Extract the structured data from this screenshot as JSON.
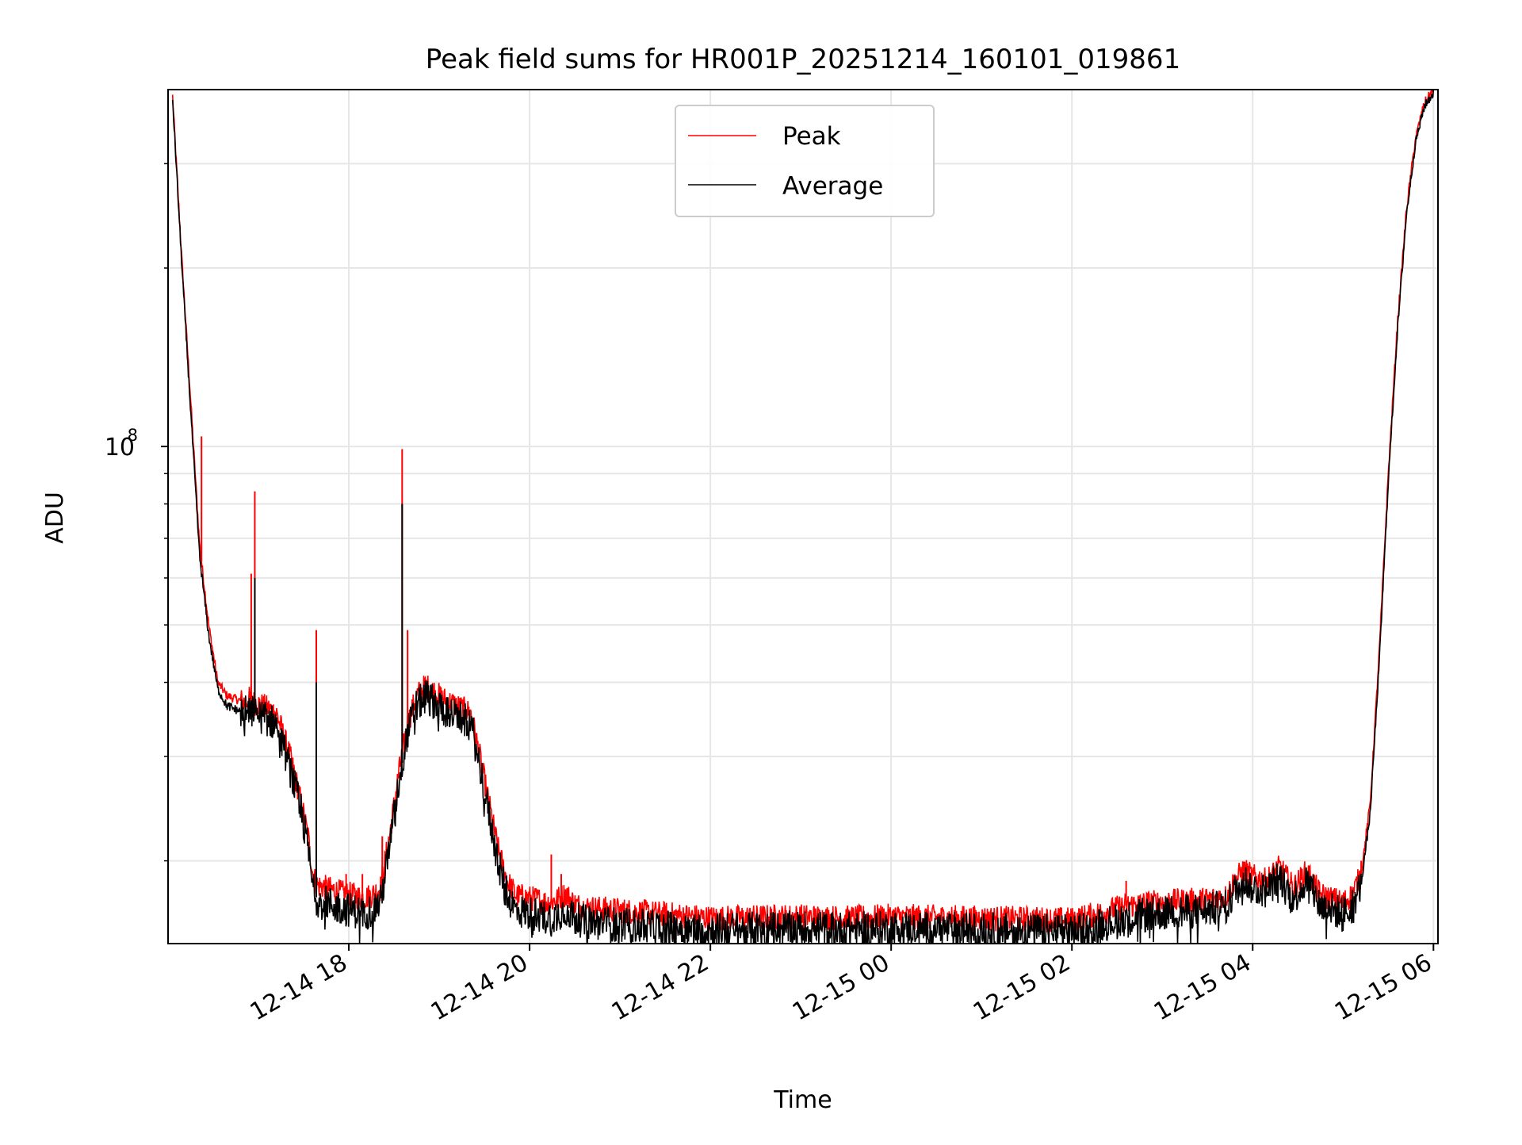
{
  "chart_data": {
    "type": "line",
    "title": "Peak field sums for HR001P_20251214_160101_019861",
    "xlabel": "Time",
    "ylabel": "ADU",
    "yscale": "log",
    "ylim": [
      14500000,
      400000000
    ],
    "xlim_hours": [
      16.0,
      30.05
    ],
    "grid": true,
    "legend_position": "top-center",
    "x_ticks": [
      {
        "hour": 18,
        "label": "12-14 18"
      },
      {
        "hour": 20,
        "label": "12-14 20"
      },
      {
        "hour": 22,
        "label": "12-14 22"
      },
      {
        "hour": 24,
        "label": "12-15 00"
      },
      {
        "hour": 26,
        "label": "12-15 02"
      },
      {
        "hour": 28,
        "label": "12-15 04"
      },
      {
        "hour": 30,
        "label": "12-15 06"
      }
    ],
    "y_major_ticks": [
      {
        "value": 100000000,
        "base": "10",
        "exp": "8"
      }
    ],
    "y_minor_ticks": [
      20000000,
      30000000,
      40000000,
      50000000,
      60000000,
      70000000,
      80000000,
      90000000,
      200000000,
      300000000
    ],
    "series": [
      {
        "name": "Peak",
        "color": "#ff0000",
        "x_hours": [
          16.05,
          16.15,
          16.25,
          16.35,
          16.45,
          16.55,
          16.65,
          16.75,
          16.85,
          16.9,
          16.95,
          17.05,
          17.2,
          17.35,
          17.45,
          17.55,
          17.6,
          17.65,
          17.75,
          17.85,
          17.95,
          18.05,
          18.15,
          18.25,
          18.35,
          18.45,
          18.55,
          18.65,
          18.75,
          18.85,
          18.95,
          19.05,
          19.2,
          19.35,
          19.45,
          19.55,
          19.65,
          19.75,
          19.85,
          20.0,
          20.1,
          20.2,
          20.3,
          20.4,
          20.5,
          20.6,
          20.8,
          21.0,
          21.2,
          21.4,
          21.6,
          21.8,
          22.0,
          22.5,
          23.0,
          23.5,
          24.0,
          24.5,
          25.0,
          25.5,
          26.0,
          26.3,
          26.6,
          26.9,
          27.2,
          27.5,
          27.7,
          27.8,
          27.9,
          28.0,
          28.15,
          28.3,
          28.45,
          28.6,
          28.75,
          28.9,
          29.0,
          29.1,
          29.2,
          29.3,
          29.4,
          29.5,
          29.6,
          29.7,
          29.8,
          29.9,
          30.0
        ],
        "values": [
          390000000,
          210000000,
          120000000,
          68000000,
          50000000,
          40000000,
          38000000,
          37500000,
          37000000,
          37500000,
          37000000,
          36500000,
          35500000,
          30000000,
          26000000,
          22000000,
          19000000,
          18200000,
          18000000,
          17800000,
          17600000,
          17500000,
          17300000,
          17500000,
          18000000,
          22000000,
          28000000,
          34000000,
          38000000,
          39500000,
          38500000,
          37500000,
          36500000,
          35500000,
          30000000,
          25000000,
          21000000,
          18500000,
          17500000,
          17300000,
          17200000,
          17000000,
          17200000,
          17600000,
          16900000,
          16700000,
          16600000,
          16500000,
          16400000,
          16300000,
          16200000,
          16100000,
          16000000,
          16050000,
          16100000,
          16000000,
          16100000,
          16050000,
          16000000,
          15950000,
          15900000,
          16300000,
          16800000,
          17000000,
          17100000,
          17200000,
          17400000,
          18500000,
          19300000,
          18800000,
          18500000,
          19500000,
          18000000,
          19200000,
          17500000,
          17200000,
          17000000,
          17500000,
          19000000,
          25000000,
          45000000,
          90000000,
          160000000,
          250000000,
          330000000,
          380000000,
          400000000
        ]
      },
      {
        "name": "Average",
        "color": "#000000",
        "x_hours": [
          16.05,
          16.15,
          16.25,
          16.35,
          16.45,
          16.55,
          16.65,
          16.75,
          16.85,
          16.9,
          16.95,
          17.05,
          17.2,
          17.35,
          17.45,
          17.55,
          17.6,
          17.65,
          17.75,
          17.85,
          17.95,
          18.05,
          18.15,
          18.25,
          18.35,
          18.45,
          18.55,
          18.65,
          18.75,
          18.85,
          18.95,
          19.05,
          19.2,
          19.35,
          19.45,
          19.55,
          19.65,
          19.75,
          19.85,
          20.0,
          20.1,
          20.2,
          20.3,
          20.4,
          20.5,
          20.6,
          20.8,
          21.0,
          21.2,
          21.4,
          21.6,
          21.8,
          22.0,
          22.5,
          23.0,
          23.5,
          24.0,
          24.5,
          25.0,
          25.5,
          26.0,
          26.3,
          26.6,
          26.9,
          27.2,
          27.5,
          27.7,
          27.8,
          27.9,
          28.0,
          28.15,
          28.3,
          28.45,
          28.6,
          28.75,
          28.9,
          29.0,
          29.1,
          29.2,
          29.3,
          29.4,
          29.5,
          29.6,
          29.7,
          29.8,
          29.9,
          30.0
        ],
        "values": [
          385000000,
          205000000,
          115000000,
          65000000,
          48000000,
          39000000,
          36500000,
          36000000,
          35500000,
          36000000,
          35500000,
          35000000,
          34000000,
          28500000,
          25000000,
          21000000,
          18000000,
          17200000,
          17000000,
          16800000,
          16600000,
          16500000,
          16300000,
          16500000,
          17000000,
          21000000,
          27000000,
          33000000,
          36500000,
          38000000,
          37000000,
          36000000,
          35000000,
          34000000,
          29000000,
          24000000,
          20000000,
          17500000,
          16500000,
          16300000,
          16200000,
          16000000,
          16200000,
          16600000,
          16000000,
          15800000,
          15700000,
          15600000,
          15500000,
          15450000,
          15400000,
          15350000,
          15300000,
          15350000,
          15400000,
          15350000,
          15400000,
          15350000,
          15300000,
          15250000,
          15200000,
          15600000,
          16000000,
          16300000,
          16400000,
          16500000,
          16700000,
          17800000,
          18600000,
          18000000,
          17800000,
          18800000,
          17300000,
          18500000,
          16800000,
          16500000,
          16300000,
          16800000,
          18300000,
          24000000,
          43000000,
          87000000,
          155000000,
          245000000,
          325000000,
          375000000,
          395000000
        ]
      }
    ],
    "spikes": [
      {
        "series": "Peak",
        "hour": 16.37,
        "value": 104000000
      },
      {
        "series": "Peak",
        "hour": 16.92,
        "value": 61000000
      },
      {
        "series": "Peak",
        "hour": 16.96,
        "value": 84000000
      },
      {
        "series": "Peak",
        "hour": 17.64,
        "value": 49000000
      },
      {
        "series": "Peak",
        "hour": 17.97,
        "value": 19000000
      },
      {
        "series": "Peak",
        "hour": 18.15,
        "value": 19000000
      },
      {
        "series": "Peak",
        "hour": 18.37,
        "value": 22000000
      },
      {
        "series": "Peak",
        "hour": 18.59,
        "value": 99000000
      },
      {
        "series": "Peak",
        "hour": 18.65,
        "value": 49000000
      },
      {
        "series": "Peak",
        "hour": 20.24,
        "value": 20500000
      },
      {
        "series": "Peak",
        "hour": 20.35,
        "value": 19000000
      },
      {
        "series": "Peak",
        "hour": 26.6,
        "value": 18500000
      },
      {
        "series": "Peak",
        "hour": 29.2,
        "value": 20000000
      },
      {
        "series": "Average",
        "hour": 16.96,
        "value": 60000000
      },
      {
        "series": "Average",
        "hour": 17.64,
        "value": 40000000
      },
      {
        "series": "Average",
        "hour": 18.59,
        "value": 80000000
      }
    ]
  }
}
